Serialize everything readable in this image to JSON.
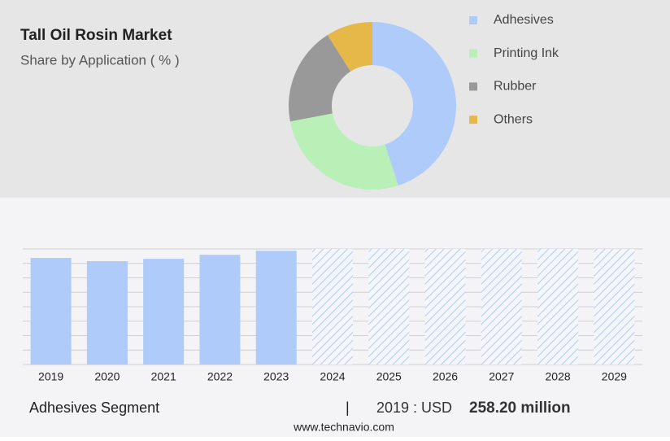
{
  "chart_data": [
    {
      "type": "pie",
      "title": "Tall Oil Rosin Market",
      "subtitle": "Share by Application ( % )",
      "categories": [
        "Adhesives",
        "Printing Ink",
        "Rubber",
        "Others"
      ],
      "values": [
        45,
        27,
        19,
        9
      ],
      "colors": [
        "#aecbfa",
        "#b8f0b8",
        "#999999",
        "#e6b84a"
      ],
      "donut": true,
      "legend": "right"
    },
    {
      "type": "bar",
      "categories": [
        "2019",
        "2020",
        "2021",
        "2022",
        "2023",
        "2024",
        "2025",
        "2026",
        "2027",
        "2028",
        "2029"
      ],
      "values": [
        258.2,
        250.4,
        256.2,
        265.9,
        275.6,
        null,
        null,
        null,
        null,
        null,
        null
      ],
      "value_labels": [
        "258.20 million",
        null,
        null,
        null,
        null,
        null,
        null,
        null,
        null,
        null,
        null
      ],
      "color": "#aecbfa",
      "ylim": [
        0,
        280
      ],
      "grid": true,
      "segment": "Adhesives Segment",
      "separator": "|",
      "highlight_prefix": "2019 : USD",
      "source": "www.technavio.com"
    }
  ]
}
